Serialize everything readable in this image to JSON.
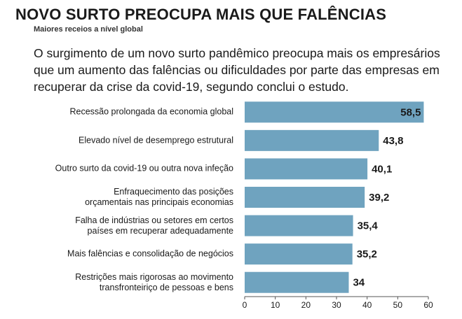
{
  "chart_data": {
    "type": "bar",
    "orientation": "horizontal",
    "title": "NOVO SURTO PREOCUPA MAIS QUE FALÊNCIAS",
    "subtitle": "Maiores receios a nível global",
    "description": "O surgimento de um novo surto pandêmico preocupa mais os empresários que um aumento das falências ou dificuldades por parte das empresas em recuperar da crise da covid-19, segundo conclui o estudo.",
    "categories": [
      "Recessão prolongada da economia global",
      "Elevado nível de desemprego estrutural",
      "Outro surto da covid-19 ou outra nova infeção",
      "Enfraquecimento das posições\norçamentais nas principais economias",
      "Falha de indústrias ou setores em certos\npaíses em recuperar adequadamente",
      "Mais falências e consolidação de negócios",
      "Restrições mais rigorosas ao movimento\ntransfronteiriço de pessoas e bens"
    ],
    "values": [
      58.5,
      43.8,
      40.1,
      39.2,
      35.4,
      35.2,
      34
    ],
    "value_labels": [
      "58,5",
      "43,8",
      "40,1",
      "39,2",
      "35,4",
      "35,2",
      "34"
    ],
    "color": "#6fa3bf",
    "xlim": [
      0,
      60
    ],
    "xticks": [
      0,
      10,
      20,
      30,
      40,
      50,
      60
    ]
  }
}
